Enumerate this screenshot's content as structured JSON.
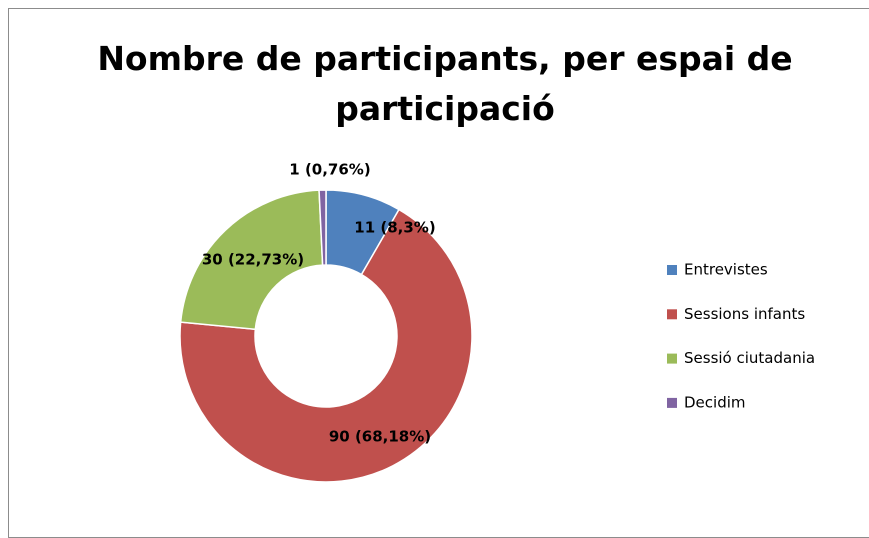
{
  "chart_data": {
    "type": "pie",
    "title": "Nombre de participants, per espai de participació",
    "categories": [
      "Entrevistes",
      "Sessions infants",
      "Sessió ciutadania",
      "Decidim"
    ],
    "values": [
      11,
      90,
      30,
      1
    ],
    "value_labels": [
      "11 (8,3%)",
      "90 (68,18%)",
      "30 (22,73%)",
      "1 (0,76%)"
    ],
    "colors": [
      "#4f81bd",
      "#c0504d",
      "#9bbb59",
      "#8064a2"
    ],
    "donut": true,
    "legend": "right"
  }
}
